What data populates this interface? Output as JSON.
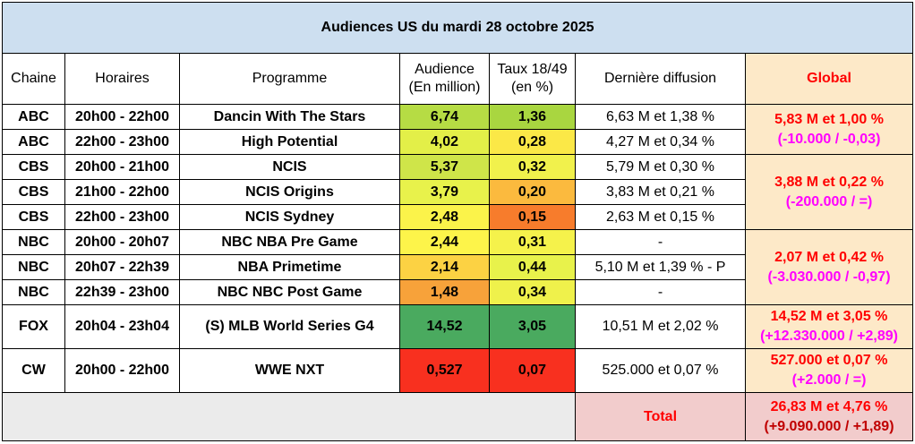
{
  "title": "Audiences US du mardi 28 octobre 2025",
  "headers": {
    "chaine": "Chaine",
    "horaires": "Horaires",
    "programme": "Programme",
    "audience_1": "Audience",
    "audience_2": "(En million)",
    "taux_1": "Taux 18/49",
    "taux_2": "(en %)",
    "derniere": "Dernière diffusion",
    "global": "Global"
  },
  "rows": [
    {
      "chaine": "ABC",
      "horaires": "20h00 - 22h00",
      "programme": "Dancin With The Stars",
      "audience": "6,74",
      "taux": "1,36",
      "derniere": "6,63 M et 1,38 %",
      "aud_color": "#b6dc44",
      "taux_color": "#a9d640"
    },
    {
      "chaine": "ABC",
      "horaires": "22h00 - 23h00",
      "programme": "High Potential",
      "audience": "4,02",
      "taux": "0,28",
      "derniere": "4,27 M et 0,34 %",
      "aud_color": "#e3ef48",
      "taux_color": "#fbe847"
    },
    {
      "chaine": "CBS",
      "horaires": "20h00 - 21h00",
      "programme": "NCIS",
      "audience": "5,37",
      "taux": "0,32",
      "derniere": "5,79 M et 0,30 %",
      "aud_color": "#cfe549",
      "taux_color": "#f1f14c"
    },
    {
      "chaine": "CBS",
      "horaires": "21h00 - 22h00",
      "programme": "NCIS Origins",
      "audience": "3,79",
      "taux": "0,20",
      "derniere": "3,83 M et 0,21 %",
      "aud_color": "#e8f24b",
      "taux_color": "#fbba3e"
    },
    {
      "chaine": "CBS",
      "horaires": "22h00 - 23h00",
      "programme": "NCIS Sydney",
      "audience": "2,48",
      "taux": "0,15",
      "derniere": "2,63 M et 0,15 %",
      "aud_color": "#fbf34a",
      "taux_color": "#f77c2c"
    },
    {
      "chaine": "NBC",
      "horaires": "20h00 - 20h07",
      "programme": "NBC NBA Pre Game",
      "audience": "2,44",
      "taux": "0,31",
      "derniere": "-",
      "aud_color": "#fdf44a",
      "taux_color": "#f5f24b"
    },
    {
      "chaine": "NBC",
      "horaires": "20h07 - 22h39",
      "programme": "NBA Primetime",
      "audience": "2,14",
      "taux": "0,44",
      "derniere": "5,10 M et 1,39 % - P",
      "aud_color": "#fcd243",
      "taux_color": "#e8f24b"
    },
    {
      "chaine": "NBC",
      "horaires": "22h39 - 23h00",
      "programme": "NBC NBC Post Game",
      "audience": "1,48",
      "taux": "0,34",
      "derniere": "-",
      "aud_color": "#f7a23a",
      "taux_color": "#eff14b"
    },
    {
      "chaine": "FOX",
      "horaires": "20h04 - 23h04",
      "programme": "(S) MLB World Series G4",
      "audience": "14,52",
      "taux": "3,05",
      "derniere": "10,51 M et 2,02 %",
      "aud_color": "#4aaa5f",
      "taux_color": "#4aaa5f"
    },
    {
      "chaine": "CW",
      "horaires": "20h00 - 22h00",
      "programme": "WWE NXT",
      "audience": "0,527",
      "taux": "0,07",
      "derniere": "525.000 et 0,07 %",
      "aud_color": "#f8301f",
      "taux_color": "#f8301f"
    }
  ],
  "global": [
    {
      "main": "5,83 M et 1,00 %",
      "diff": "(-10.000 / -0,03)"
    },
    {
      "main": "3,88 M et 0,22 %",
      "diff": "(-200.000 / =)"
    },
    {
      "main": "2,07 M et 0,42 %",
      "diff": "(-3.030.000 / -0,97)"
    },
    {
      "main": "14,52 M et 3,05 %",
      "diff": "(+12.330.000 / +2,89)"
    },
    {
      "main": "527.000 et 0,07 %",
      "diff": "(+2.000 / =)"
    }
  ],
  "total": {
    "label": "Total",
    "main": "26,83 M et 4,76 %",
    "diff": "(+9.090.000 / +1,89)"
  }
}
